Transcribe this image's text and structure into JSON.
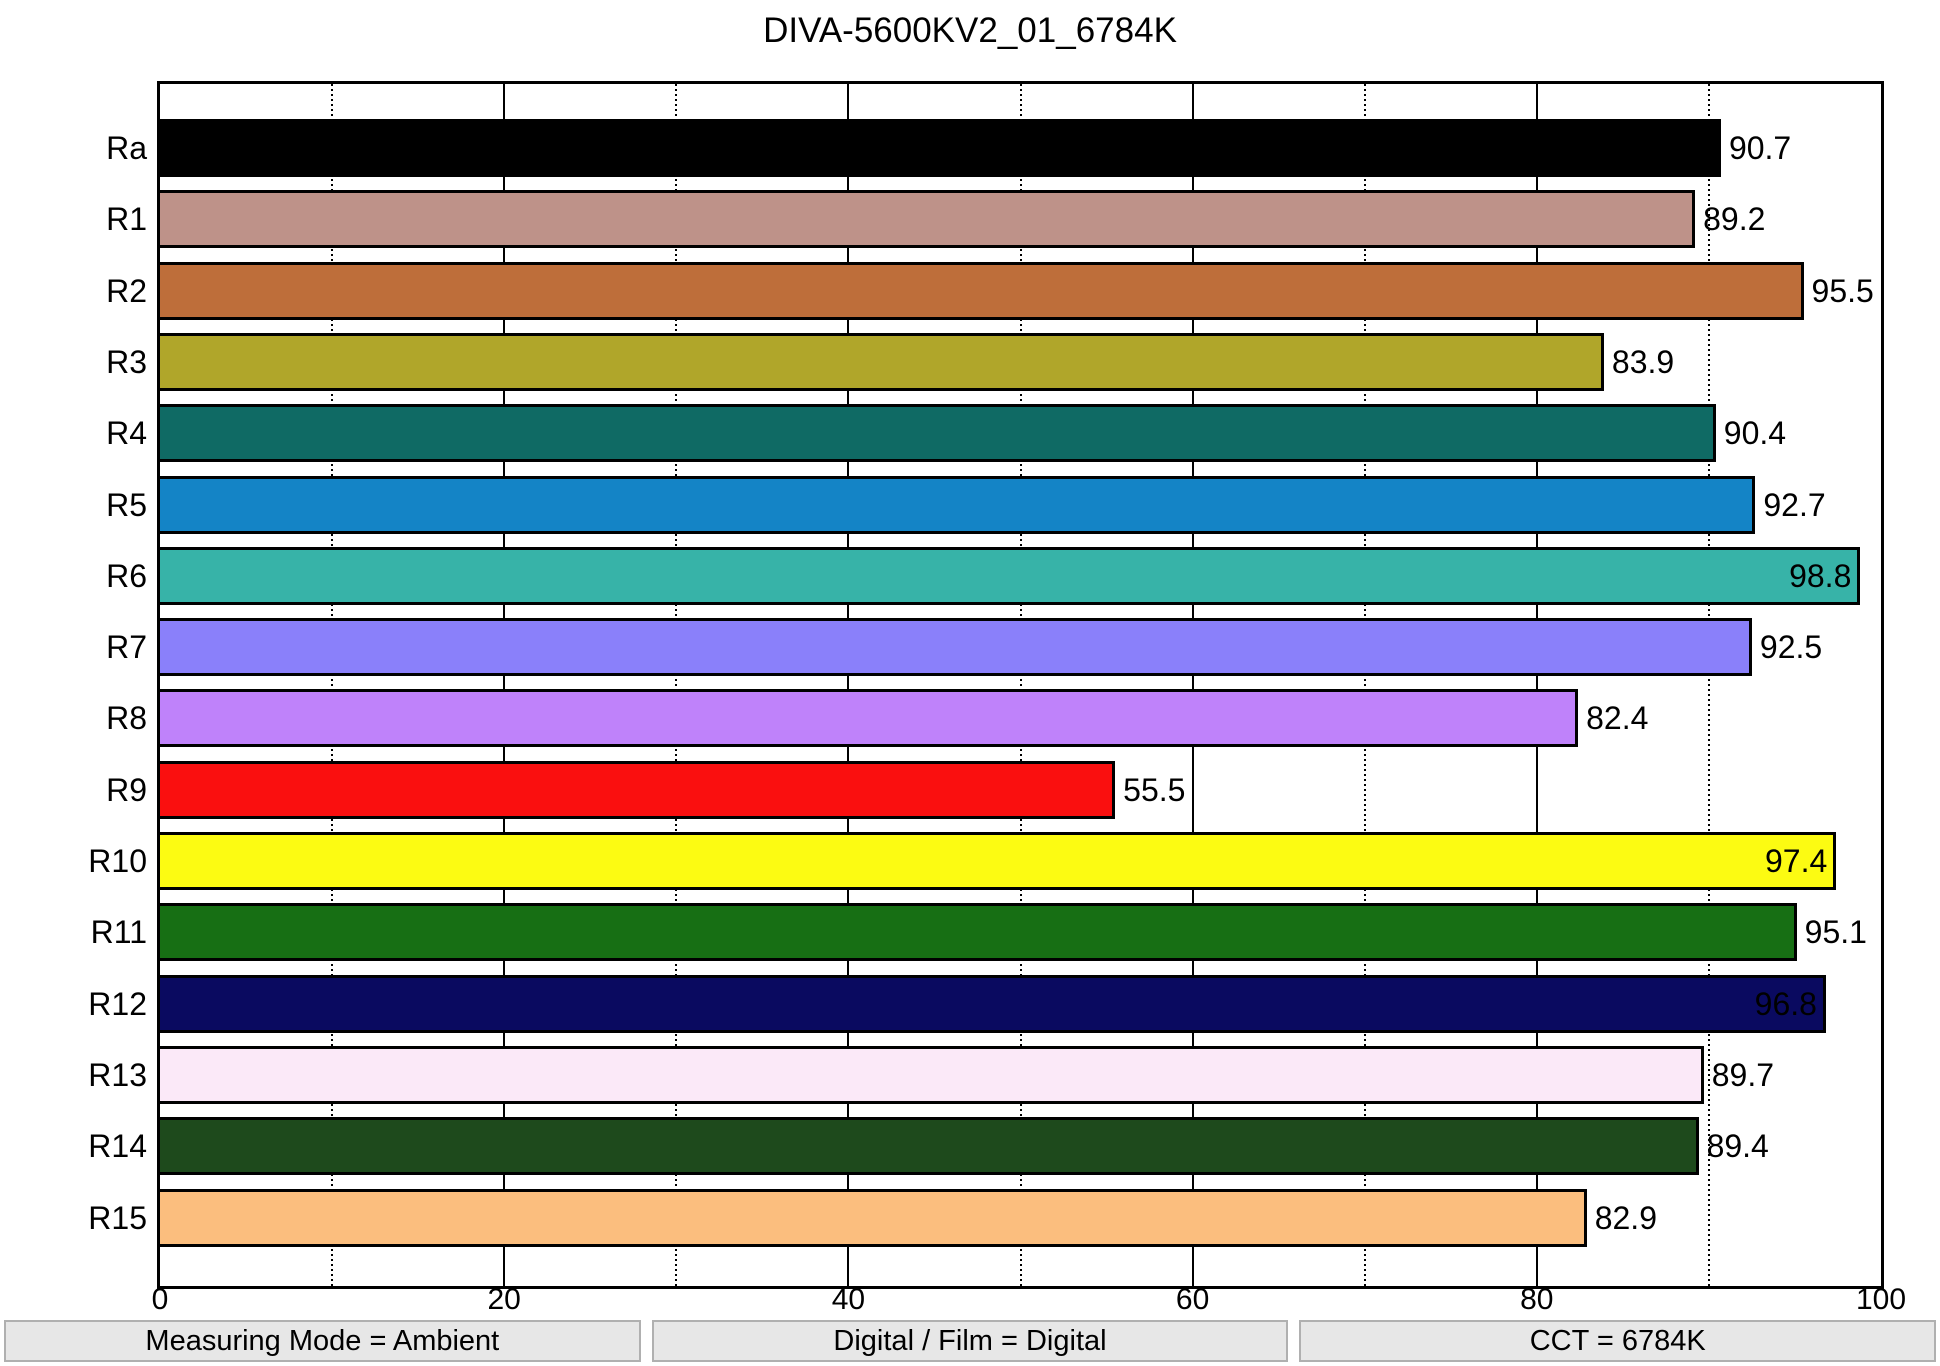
{
  "title": "DIVA-5600KV2_01_6784K",
  "chart_data": {
    "type": "bar",
    "orientation": "horizontal",
    "categories": [
      "Ra",
      "R1",
      "R2",
      "R3",
      "R4",
      "R5",
      "R6",
      "R7",
      "R8",
      "R9",
      "R10",
      "R11",
      "R12",
      "R13",
      "R14",
      "R15"
    ],
    "values": [
      90.7,
      89.2,
      95.5,
      83.9,
      90.4,
      92.7,
      98.8,
      92.5,
      82.4,
      55.5,
      97.4,
      95.1,
      96.8,
      89.7,
      89.4,
      82.9
    ],
    "colors": [
      "#000000",
      "#BE9289",
      "#BE6E3A",
      "#B0A62A",
      "#0F6A64",
      "#1484C6",
      "#37B3A8",
      "#8A80FA",
      "#BF82FA",
      "#FA0F0F",
      "#FCFB12",
      "#176F14",
      "#0A0A60",
      "#FBE9F8",
      "#1E4A1C",
      "#FBBE7E"
    ],
    "xlim": [
      0,
      100
    ],
    "xticks": [
      0,
      20,
      40,
      60,
      80,
      100
    ],
    "minor_gridlines": [
      10,
      30,
      50,
      70,
      90
    ],
    "major_gridlines": [
      20,
      40,
      60,
      80
    ],
    "inside_label_threshold": 96,
    "bar_edge_color": "#000000",
    "value_label_color": "#000000"
  },
  "footer": {
    "items": [
      "Measuring Mode = Ambient",
      "Digital / Film = Digital",
      "CCT = 6784K"
    ]
  }
}
